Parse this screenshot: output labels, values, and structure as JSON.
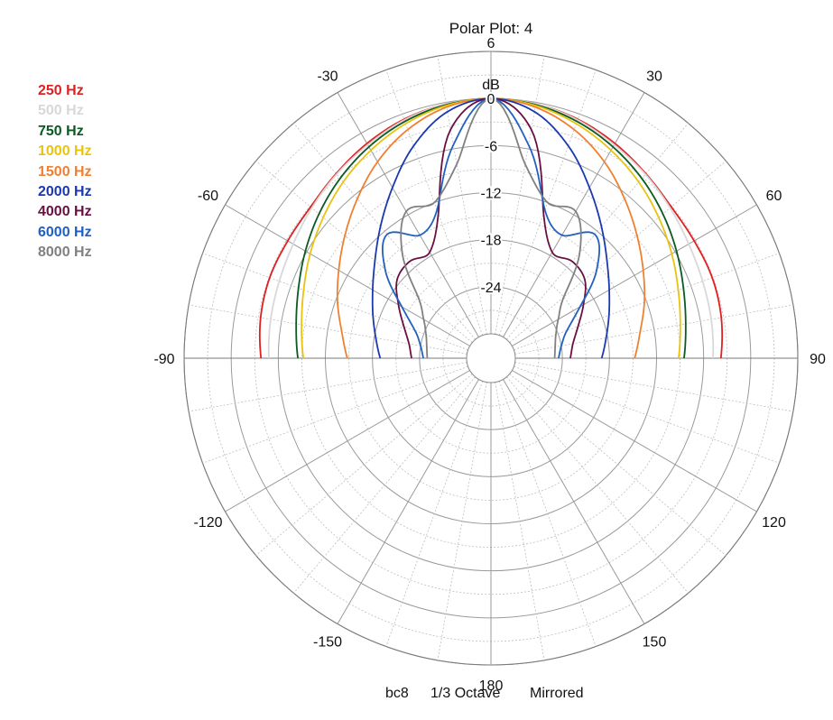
{
  "chart_data": {
    "type": "polar",
    "title": "Polar Plot: 4",
    "footer": [
      "bc8",
      "1/3 Octave",
      "Mirrored"
    ],
    "radial_unit": "dB",
    "radial_range": [
      -30,
      6
    ],
    "radial_ticks": [
      6,
      0,
      -6,
      -12,
      -18,
      -24
    ],
    "angle_ticks": [
      -30,
      30,
      -60,
      60,
      -90,
      90,
      -120,
      120,
      -150,
      150,
      180
    ],
    "angle_step_grid_deg": 10,
    "mirrored": true,
    "series": [
      {
        "name": "250 Hz",
        "color": "#e02020",
        "angles": [
          0,
          10,
          20,
          30,
          40,
          50,
          60,
          70,
          80,
          90
        ],
        "db": [
          0.0,
          -0.2,
          -0.7,
          -1.5,
          -2.4,
          -3.1,
          -3.2,
          -3.1,
          -3.3,
          -3.8
        ]
      },
      {
        "name": "500 Hz",
        "color": "#d8d8d8",
        "angles": [
          0,
          10,
          20,
          30,
          40,
          50,
          60,
          70,
          80,
          90
        ],
        "db": [
          0.0,
          -0.2,
          -0.8,
          -1.7,
          -2.5,
          -3.3,
          -4.0,
          -4.4,
          -4.6,
          -4.8
        ]
      },
      {
        "name": "750 Hz",
        "color": "#0a5a22",
        "angles": [
          0,
          10,
          20,
          30,
          40,
          50,
          60,
          70,
          80,
          90
        ],
        "db": [
          0.0,
          -0.3,
          -1.0,
          -2.0,
          -3.2,
          -4.5,
          -5.8,
          -7.0,
          -7.9,
          -8.5
        ]
      },
      {
        "name": "1000 Hz",
        "color": "#e8c410",
        "angles": [
          0,
          10,
          20,
          30,
          40,
          50,
          60,
          70,
          80,
          90
        ],
        "db": [
          0.0,
          -0.4,
          -1.3,
          -2.5,
          -3.8,
          -5.2,
          -6.5,
          -7.7,
          -8.6,
          -9.2
        ]
      },
      {
        "name": "1500 Hz",
        "color": "#f08030",
        "angles": [
          0,
          10,
          20,
          30,
          40,
          50,
          60,
          70,
          80,
          90
        ],
        "db": [
          0.0,
          -0.6,
          -2.1,
          -4.2,
          -6.6,
          -8.8,
          -10.7,
          -12.3,
          -13.8,
          -14.8
        ]
      },
      {
        "name": "2000 Hz",
        "color": "#1a38b0",
        "angles": [
          0,
          10,
          20,
          30,
          40,
          50,
          60,
          70,
          80,
          90
        ],
        "db": [
          0.0,
          -1.2,
          -4.3,
          -8.0,
          -11.2,
          -13.8,
          -15.7,
          -17.1,
          -18.2,
          -19.0
        ]
      },
      {
        "name": "4000 Hz",
        "color": "#6a1040",
        "angles": [
          0,
          10,
          20,
          30,
          40,
          50,
          60,
          70,
          80,
          90
        ],
        "db": [
          0.0,
          -3.5,
          -13.5,
          -17.5,
          -17.0,
          -17.5,
          -19.5,
          -21.3,
          -22.5,
          -23.0
        ]
      },
      {
        "name": "6000 Hz",
        "color": "#2060c0",
        "angles": [
          0,
          10,
          20,
          30,
          40,
          50,
          60,
          70,
          80,
          90
        ],
        "db": [
          0.0,
          -5.5,
          -13.0,
          -15.0,
          -12.5,
          -15.5,
          -20.0,
          -22.8,
          -24.0,
          -24.5
        ]
      },
      {
        "name": "8000 Hz",
        "color": "#808080",
        "angles": [
          0,
          10,
          20,
          30,
          40,
          50,
          60,
          70,
          80,
          90
        ],
        "db": [
          0.0,
          -8.0,
          -12.0,
          -11.5,
          -15.5,
          -21.0,
          -23.2,
          -24.3,
          -24.8,
          -25.0
        ]
      }
    ]
  }
}
